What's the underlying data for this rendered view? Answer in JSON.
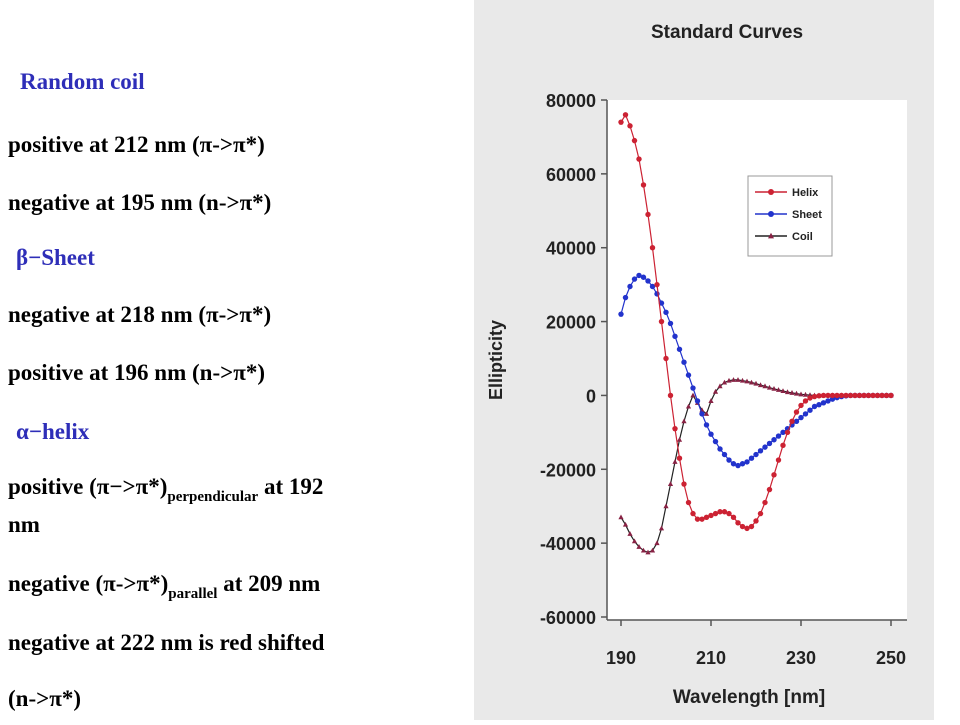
{
  "notes": {
    "coil_title": "Random coil",
    "coil_1": "positive at 212 nm (π->π*)",
    "coil_2": "negative at 195 nm (n->π*)",
    "sheet_title": "β−Sheet",
    "sheet_1": "negative at 218 nm (π->π*)",
    "sheet_2": "positive at 196 nm (n->π*)",
    "helix_title": "α−helix",
    "helix_1_a": "positive (π−>π*)",
    "helix_1_sub": "perpendicular",
    "helix_1_b": " at 192",
    "helix_1_c": "nm",
    "helix_2_a": "negative (π->π*)",
    "helix_2_sub": "parallel",
    "helix_2_b": " at 209 nm",
    "helix_3": "negative at 222 nm is red shifted",
    "helix_4": "(n->π*)"
  },
  "chart_data": {
    "type": "line",
    "title": "Standard Curves",
    "xlabel": "Wavelength [nm]",
    "ylabel": "Ellipticity",
    "xlim": [
      190,
      250
    ],
    "ylim": [
      -60000,
      80000
    ],
    "x_ticks": [
      "190",
      "210",
      "230",
      "250"
    ],
    "y_ticks": [
      "80000",
      "60000",
      "40000",
      "20000",
      "0",
      "-20000",
      "-40000",
      "-60000"
    ],
    "legend": "top-right",
    "series": [
      {
        "name": "Helix",
        "color": "#cc2233",
        "marker": "circle",
        "x": [
          190,
          191,
          192,
          193,
          194,
          195,
          196,
          197,
          198,
          199,
          200,
          201,
          202,
          203,
          204,
          205,
          206,
          207,
          208,
          209,
          210,
          211,
          212,
          213,
          214,
          215,
          216,
          217,
          218,
          219,
          220,
          221,
          222,
          223,
          224,
          225,
          226,
          227,
          228,
          229,
          230,
          231,
          232,
          233,
          234,
          235,
          236,
          237,
          238,
          239,
          240,
          241,
          242,
          243,
          244,
          245,
          246,
          247,
          248,
          249,
          250
        ],
        "y": [
          74000,
          76000,
          73000,
          69000,
          64000,
          57000,
          49000,
          40000,
          30000,
          20000,
          10000,
          0,
          -9000,
          -17000,
          -24000,
          -29000,
          -32000,
          -33500,
          -33500,
          -33000,
          -32500,
          -32000,
          -31500,
          -31500,
          -32000,
          -33000,
          -34500,
          -35500,
          -36000,
          -35500,
          -34000,
          -32000,
          -29000,
          -25500,
          -21500,
          -17500,
          -13500,
          -10000,
          -7000,
          -4500,
          -2700,
          -1500,
          -700,
          -300,
          -100,
          0,
          0,
          0,
          0,
          0,
          0,
          0,
          0,
          0,
          0,
          0,
          0,
          0,
          0,
          0,
          0
        ]
      },
      {
        "name": "Sheet",
        "color": "#2233cc",
        "marker": "circle",
        "x": [
          190,
          191,
          192,
          193,
          194,
          195,
          196,
          197,
          198,
          199,
          200,
          201,
          202,
          203,
          204,
          205,
          206,
          207,
          208,
          209,
          210,
          211,
          212,
          213,
          214,
          215,
          216,
          217,
          218,
          219,
          220,
          221,
          222,
          223,
          224,
          225,
          226,
          227,
          228,
          229,
          230,
          231,
          232,
          233,
          234,
          235,
          236,
          237,
          238,
          239,
          240,
          241,
          242,
          243,
          244,
          245,
          246,
          247,
          248,
          249,
          250
        ],
        "y": [
          22000,
          26500,
          29500,
          31500,
          32500,
          32000,
          31000,
          29500,
          27500,
          25000,
          22500,
          19500,
          16000,
          12500,
          9000,
          5500,
          2000,
          -1500,
          -5000,
          -8000,
          -10500,
          -12500,
          -14500,
          -16000,
          -17500,
          -18500,
          -19000,
          -18500,
          -18000,
          -17000,
          -16000,
          -15000,
          -14000,
          -13000,
          -12000,
          -11000,
          -10000,
          -9000,
          -8000,
          -7000,
          -6000,
          -5000,
          -4000,
          -3000,
          -2500,
          -2000,
          -1500,
          -1000,
          -600,
          -300,
          -100,
          0,
          0,
          0,
          0,
          0,
          0,
          0,
          0,
          0,
          0
        ]
      },
      {
        "name": "Coil",
        "color": "#882244",
        "marker": "triangle",
        "x": [
          190,
          191,
          192,
          193,
          194,
          195,
          196,
          197,
          198,
          199,
          200,
          201,
          202,
          203,
          204,
          205,
          206,
          207,
          208,
          209,
          210,
          211,
          212,
          213,
          214,
          215,
          216,
          217,
          218,
          219,
          220,
          221,
          222,
          223,
          224,
          225,
          226,
          227,
          228,
          229,
          230,
          231,
          232,
          233,
          234,
          235,
          236,
          237,
          238,
          239,
          240,
          241,
          242,
          243,
          244,
          245,
          246,
          247,
          248,
          249,
          250
        ],
        "y": [
          -33000,
          -35000,
          -37500,
          -39500,
          -41000,
          -42000,
          -42500,
          -42000,
          -40000,
          -36000,
          -30000,
          -24000,
          -18000,
          -12000,
          -7000,
          -3000,
          0,
          -2000,
          -4000,
          -5000,
          -1500,
          1000,
          2500,
          3500,
          4000,
          4200,
          4200,
          4000,
          3800,
          3500,
          3200,
          2800,
          2500,
          2100,
          1800,
          1500,
          1200,
          900,
          700,
          500,
          300,
          200,
          100,
          0,
          0,
          0,
          0,
          0,
          0,
          0,
          0,
          0,
          0,
          0,
          0,
          0,
          0,
          0,
          0,
          0,
          0
        ]
      }
    ]
  }
}
